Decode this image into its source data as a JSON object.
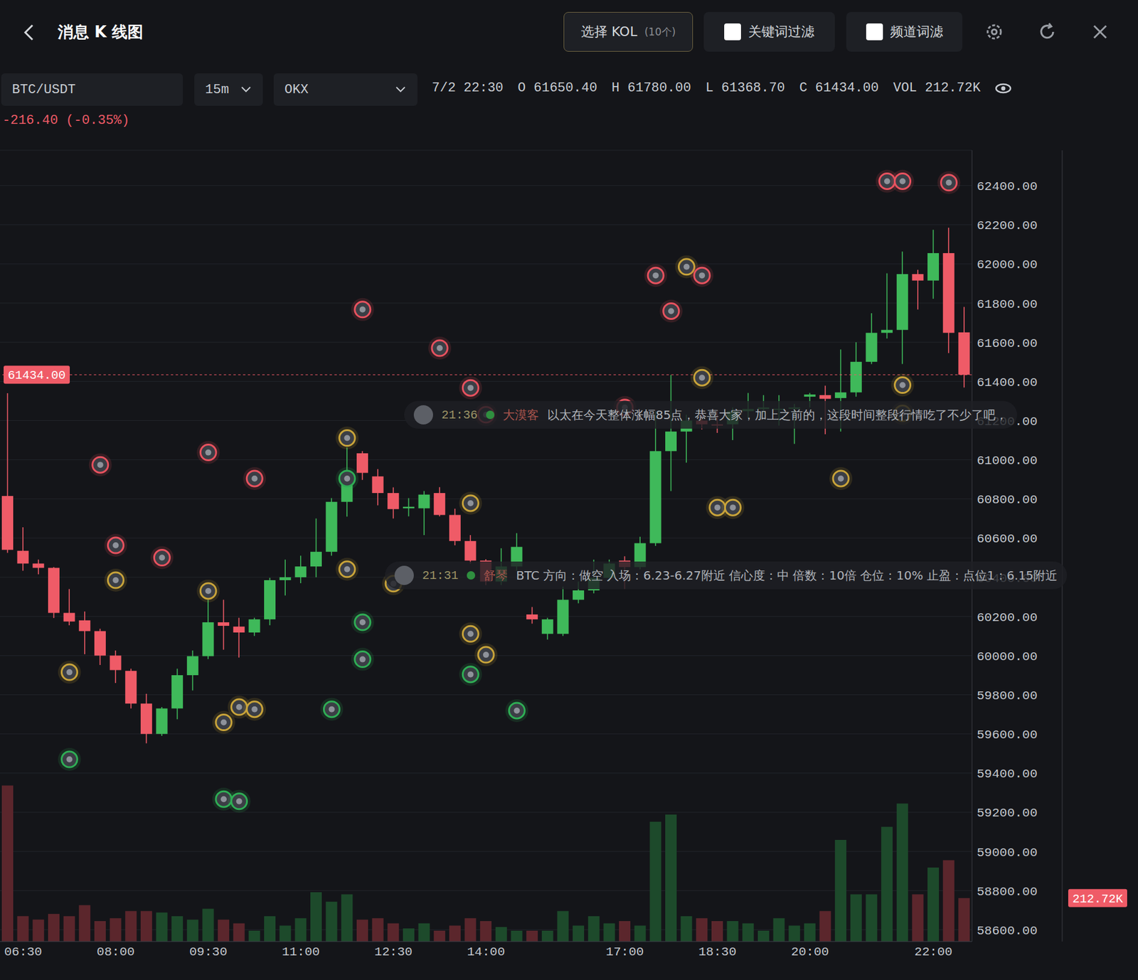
{
  "header": {
    "title": "消息 K 线图",
    "kol_button": "选择 KOL",
    "kol_count": "(10个)",
    "keyword_filter": "关键词过滤",
    "channel_filter": "频道词滤"
  },
  "toolbar": {
    "pair": "BTC/USDT",
    "interval": "15m",
    "exchange": "OKX",
    "time": "7/2 22:30",
    "ohlc": [
      [
        "O",
        "61650.40"
      ],
      [
        "H",
        "61780.00"
      ],
      [
        "L",
        "61368.70"
      ],
      [
        "C",
        "61434.00"
      ],
      [
        "VOL",
        "212.72K"
      ]
    ],
    "change": "-216.40 (-0.35%)"
  },
  "messages": [
    {
      "time": "21:36",
      "author": "大漠客",
      "text": "以太在今天整体涨幅85点，恭喜大家，加上之前的，这段时间整段行情吃了不少了吧，"
    },
    {
      "time": "21:31",
      "author": "舒琴",
      "text": "BTC 方向：做空 入场：6.23-6.27附近 信心度：中 倍数：10倍 仓位：10% 止盈：点位1：6.15附近"
    }
  ],
  "chart_data": {
    "type": "candlestick",
    "categories": [
      null,
      "06:30",
      null,
      null,
      null,
      null,
      null,
      "08:00",
      null,
      null,
      null,
      null,
      null,
      "09:30",
      null,
      null,
      null,
      null,
      null,
      "11:00",
      null,
      null,
      null,
      null,
      null,
      "12:30",
      null,
      null,
      null,
      null,
      null,
      "14:00",
      null,
      null,
      null,
      null,
      null,
      null,
      null,
      null,
      "17:00",
      null,
      null,
      null,
      null,
      null,
      "18:30",
      null,
      null,
      null,
      null,
      null,
      "20:00",
      null,
      null,
      null,
      null,
      null,
      null,
      null,
      "22:00",
      null,
      null
    ],
    "ylim": [
      58540,
      62580
    ],
    "yticks": [
      {
        "value": 58600,
        "label": "58600.00"
      },
      {
        "value": 58800,
        "label": "58800.00"
      },
      {
        "value": 59000,
        "label": "59000.00"
      },
      {
        "value": 59200,
        "label": "59200.00"
      },
      {
        "value": 59400,
        "label": "59400.00"
      },
      {
        "value": 59600,
        "label": "59600.00"
      },
      {
        "value": 59800,
        "label": "59800.00"
      },
      {
        "value": 60000,
        "label": "60000.00"
      },
      {
        "value": 60200,
        "label": "60200.00"
      },
      {
        "value": 60400,
        "label": "60400.00"
      },
      {
        "value": 60600,
        "label": "60600.00"
      },
      {
        "value": 60800,
        "label": "60800.00"
      },
      {
        "value": 61000,
        "label": "61000.00"
      },
      {
        "value": 61200,
        "label": "61200.00"
      },
      {
        "value": 61400,
        "label": "61400.00"
      },
      {
        "value": 61600,
        "label": "61600.00"
      },
      {
        "value": 61800,
        "label": "61800.00"
      },
      {
        "value": 62000,
        "label": "62000.00"
      },
      {
        "value": 62200,
        "label": "62200.00"
      },
      {
        "value": 62400,
        "label": "62400.00"
      }
    ],
    "y2lim": [
      0,
      3870
    ],
    "y2ticks": [
      {
        "value": 212.72,
        "label": "212.72K"
      }
    ],
    "grid": true,
    "reference_line": {
      "value": 61434,
      "label": "61434.00",
      "line_style": "dashed"
    },
    "series": [
      {
        "type": "candlestick",
        "open": [
          60815,
          60535,
          60470,
          60448,
          60218,
          60180,
          60125,
          60000,
          59922,
          59755,
          59600,
          59730,
          59900,
          59997,
          60170,
          60148,
          60118,
          60185,
          60385,
          60400,
          60455,
          60530,
          60785,
          61033,
          60915,
          60830,
          60752,
          60752,
          60830,
          60718,
          60585,
          60485,
          60378,
          60455,
          60210,
          60111,
          60111,
          60285,
          60333,
          60397,
          60485,
          60452,
          60574,
          61044,
          61144,
          61200,
          61181,
          61181,
          61248,
          61259,
          61256,
          61260,
          61322,
          61330,
          61315,
          61344,
          61500,
          61648,
          61663,
          61948,
          61915,
          62055,
          61650.4
        ],
        "high": [
          61340,
          60655,
          60490,
          60452,
          60340,
          60225,
          60137,
          60026,
          59933,
          59805,
          59737,
          59933,
          60026,
          60285,
          60285,
          60193,
          60193,
          60397,
          60490,
          60510,
          60700,
          60804,
          61063,
          61044,
          60952,
          60859,
          60804,
          60840,
          60860,
          60750,
          60615,
          60492,
          60548,
          60625,
          60248,
          60193,
          60352,
          60378,
          60490,
          60490,
          60507,
          60607,
          61248,
          61433,
          61230,
          61248,
          61248,
          61267,
          61341,
          61330,
          61330,
          61285,
          61341,
          61378,
          61563,
          61600,
          61748,
          61952,
          62063,
          61970,
          62174,
          62185,
          61780
        ],
        "low": [
          60525,
          60433,
          60415,
          60192,
          60155,
          60007,
          59952,
          59860,
          59730,
          59552,
          59590,
          59675,
          59822,
          59982,
          60030,
          59990,
          60100,
          60155,
          60307,
          60370,
          60400,
          60510,
          60710,
          60897,
          60767,
          60700,
          60711,
          60615,
          60711,
          60563,
          60470,
          60360,
          60360,
          60433,
          60163,
          60082,
          60100,
          60267,
          60318,
          60378,
          60340,
          60440,
          60560,
          60840,
          60985,
          61155,
          61137,
          61100,
          61211,
          61237,
          61175,
          61081,
          61267,
          61130,
          61144,
          61322,
          61489,
          61619,
          61489,
          61767,
          61822,
          61545,
          61368.7
        ],
        "close": [
          60540,
          60470,
          60448,
          60218,
          60174,
          60125,
          60000,
          59926,
          59755,
          59600,
          59730,
          59900,
          59997,
          60170,
          60152,
          60118,
          60185,
          60385,
          60400,
          60455,
          60530,
          60785,
          60935,
          60933,
          60830,
          60748,
          60760,
          60822,
          60718,
          60585,
          60485,
          60378,
          60455,
          60555,
          60185,
          60185,
          60285,
          60333,
          60397,
          60470,
          60452,
          60574,
          61044,
          61144,
          61200,
          61181,
          61174,
          61248,
          61259,
          61267,
          61260,
          61267,
          61333,
          61311,
          61344,
          61500,
          61648,
          61663,
          61948,
          61915,
          62055,
          61648,
          61434
        ]
      },
      {
        "type": "bar",
        "axis": "y2",
        "values": [
          763,
          124,
          107,
          135,
          124,
          178,
          100,
          114,
          149,
          149,
          142,
          124,
          107,
          160,
          107,
          89,
          53,
          124,
          78,
          114,
          241,
          195,
          231,
          107,
          114,
          89,
          64,
          89,
          53,
          78,
          114,
          100,
          71,
          53,
          53,
          53,
          149,
          78,
          124,
          89,
          100,
          78,
          586,
          621,
          124,
          114,
          100,
          100,
          89,
          53,
          114,
          78,
          89,
          149,
          497,
          231,
          231,
          561,
          675,
          231,
          362,
          398,
          212.72
        ]
      },
      {
        "type": "scatter",
        "marker": "circle",
        "x": [
          23,
          28,
          30,
          31,
          40,
          42,
          44,
          45,
          43,
          45,
          57,
          58,
          61,
          58,
          58,
          54,
          46,
          47,
          6,
          13,
          16,
          7,
          10,
          7,
          4,
          4,
          13,
          15,
          16,
          14,
          14,
          15,
          21,
          22,
          22,
          22,
          25,
          23,
          23,
          30,
          30,
          31,
          30,
          33
        ],
        "y": [
          61767,
          61570,
          61367,
          61230,
          61267,
          61941,
          61985,
          61941,
          61759,
          61419,
          62422,
          62422,
          62415,
          61381,
          61237,
          60904,
          60756,
          60756,
          60974,
          61037,
          60904,
          60563,
          60500,
          60385,
          59915,
          59470,
          60330,
          59737,
          59726,
          59659,
          59267,
          59256,
          59726,
          61111,
          60904,
          60441,
          60367,
          60170,
          59981,
          60778,
          60111,
          60004,
          59904,
          59719
        ],
        "colors": [
          "#e8525f",
          "#e8525f",
          "#e8525f",
          "#e8525f",
          "#e8525f",
          "#e8525f",
          "#c9a43a",
          "#e8525f",
          "#e8525f",
          "#c9a43a",
          "#e8525f",
          "#e8525f",
          "#e8525f",
          "#c9a43a",
          "#c9a43a",
          "#c9a43a",
          "#c9a43a",
          "#c9a43a",
          "#e8525f",
          "#e8525f",
          "#e8525f",
          "#e8525f",
          "#e8525f",
          "#c9a43a",
          "#c9a43a",
          "#2fae55",
          "#c9a43a",
          "#c9a43a",
          "#c9a43a",
          "#c9a43a",
          "#2fae55",
          "#2fae55",
          "#2fae55",
          "#c9a43a",
          "#2fae55",
          "#c9a43a",
          "#c9a43a",
          "#2fae55",
          "#2fae55",
          "#c9a43a",
          "#c9a43a",
          "#c9a43a",
          "#2fae55",
          "#2fae55"
        ]
      }
    ]
  }
}
